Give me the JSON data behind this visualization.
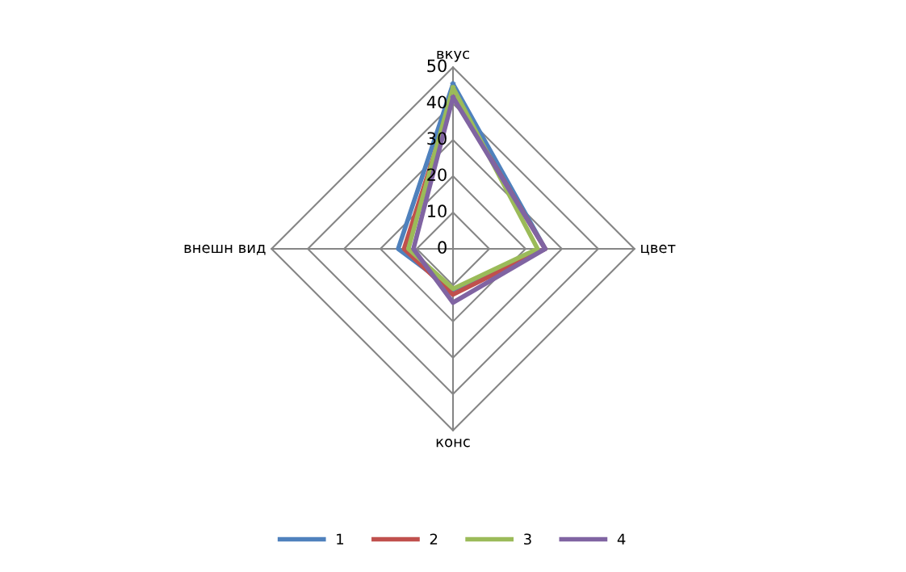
{
  "chart_data": {
    "type": "radar",
    "categories": [
      "вкус",
      "цвет",
      "конс",
      "внешн вид"
    ],
    "series": [
      {
        "name": "1",
        "color": "#4f81bd",
        "values": [
          45.4,
          25.4,
          11.3,
          15.1
        ]
      },
      {
        "name": "2",
        "color": "#c0504d",
        "values": [
          42,
          25.4,
          12.6,
          13.5
        ]
      },
      {
        "name": "3",
        "color": "#9bbb59",
        "values": [
          44.4,
          23.3,
          11,
          12.3
        ]
      },
      {
        "name": "4",
        "color": "#8064a2",
        "values": [
          41.7,
          25.4,
          14.8,
          10.9
        ]
      }
    ],
    "ylim": [
      0,
      50
    ],
    "yticks": [
      0,
      10,
      20,
      30,
      40,
      50
    ],
    "grid": true,
    "legend": "bottom",
    "marker": "none"
  }
}
